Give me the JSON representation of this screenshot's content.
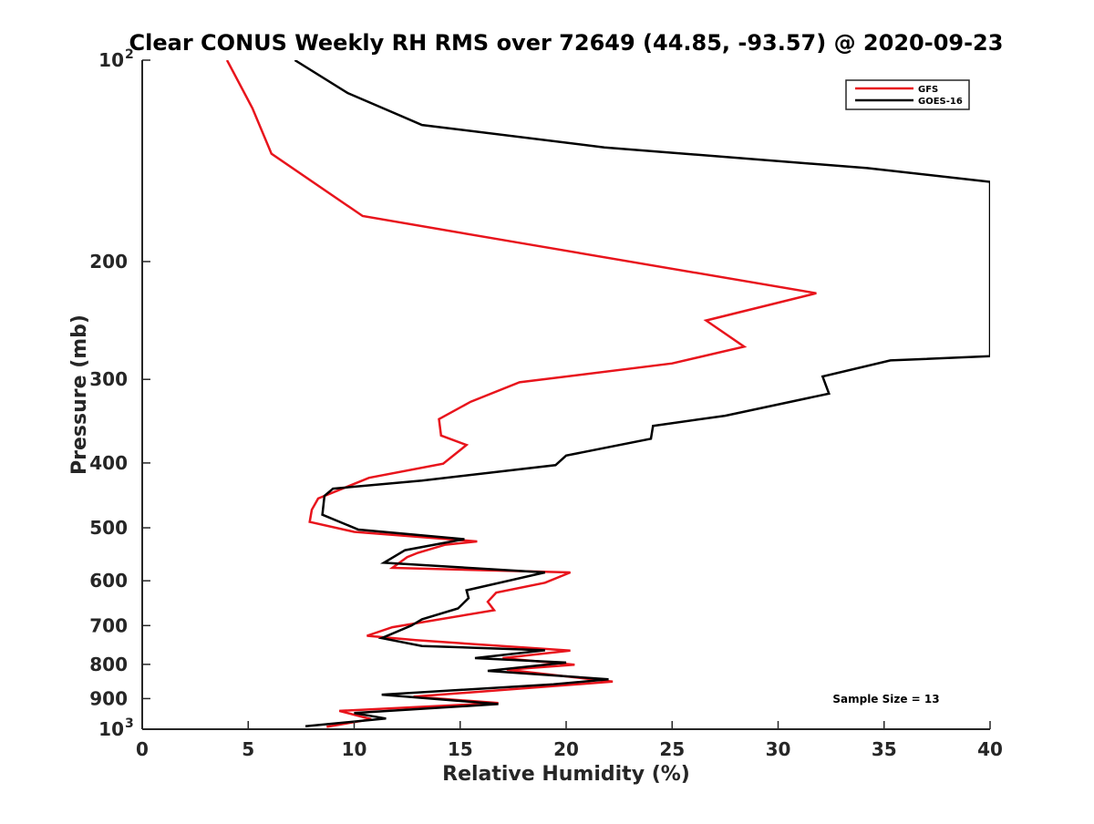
{
  "chart_data": {
    "type": "line",
    "title": "Clear CONUS Weekly RH RMS over 72649 (44.85, -93.57) @ 2020-09-23",
    "xlabel": "Relative Humidity (%)",
    "ylabel": "Pressure (mb)",
    "xlim": [
      0,
      40
    ],
    "ylim": [
      100,
      1000
    ],
    "y_scale": "log",
    "y_reversed": true,
    "grid": false,
    "legend_position": "top-right",
    "x_ticks": [
      {
        "value": 0,
        "label": "0"
      },
      {
        "value": 5,
        "label": "5"
      },
      {
        "value": 10,
        "label": "10"
      },
      {
        "value": 15,
        "label": "15"
      },
      {
        "value": 20,
        "label": "20"
      },
      {
        "value": 25,
        "label": "25"
      },
      {
        "value": 30,
        "label": "30"
      },
      {
        "value": 35,
        "label": "35"
      },
      {
        "value": 40,
        "label": "40"
      }
    ],
    "y_ticks": [
      {
        "value": 100,
        "base": "10",
        "exp": "2"
      },
      {
        "value": 200,
        "base": "200",
        "exp": ""
      },
      {
        "value": 300,
        "base": "300",
        "exp": ""
      },
      {
        "value": 400,
        "base": "400",
        "exp": ""
      },
      {
        "value": 500,
        "base": "500",
        "exp": ""
      },
      {
        "value": 600,
        "base": "600",
        "exp": ""
      },
      {
        "value": 700,
        "base": "700",
        "exp": ""
      },
      {
        "value": 800,
        "base": "800",
        "exp": ""
      },
      {
        "value": 900,
        "base": "900",
        "exp": ""
      },
      {
        "value": 1000,
        "base": "10",
        "exp": "3"
      }
    ],
    "series": [
      {
        "name": "GFS",
        "color": "#e8141c",
        "points": [
          [
            4.0,
            100
          ],
          [
            5.2,
            118
          ],
          [
            6.1,
            138
          ],
          [
            10.4,
            171
          ],
          [
            18.0,
            188
          ],
          [
            31.8,
            223
          ],
          [
            26.6,
            245
          ],
          [
            28.4,
            268
          ],
          [
            25.0,
            284
          ],
          [
            17.8,
            303
          ],
          [
            15.5,
            324
          ],
          [
            14.0,
            344
          ],
          [
            14.1,
            364
          ],
          [
            15.3,
            376
          ],
          [
            14.2,
            401
          ],
          [
            10.7,
            421
          ],
          [
            8.3,
            452
          ],
          [
            8.0,
            470
          ],
          [
            7.9,
            490
          ],
          [
            10.0,
            507
          ],
          [
            15.8,
            524
          ],
          [
            14.3,
            530
          ],
          [
            13.0,
            545
          ],
          [
            12.5,
            553
          ],
          [
            11.8,
            574
          ],
          [
            20.2,
            583
          ],
          [
            19.0,
            604
          ],
          [
            16.7,
            625
          ],
          [
            16.3,
            645
          ],
          [
            16.6,
            664
          ],
          [
            11.8,
            704
          ],
          [
            10.6,
            725
          ],
          [
            12.9,
            736
          ],
          [
            20.2,
            763
          ],
          [
            17.0,
            783
          ],
          [
            20.4,
            801
          ],
          [
            17.2,
            815
          ],
          [
            22.2,
            849
          ],
          [
            12.8,
            894
          ],
          [
            16.8,
            914
          ],
          [
            9.3,
            939
          ],
          [
            10.8,
            966
          ],
          [
            8.7,
            992
          ]
        ]
      },
      {
        "name": "GOES-16",
        "color": "#000000",
        "points": [
          [
            7.2,
            100
          ],
          [
            9.7,
            112
          ],
          [
            13.2,
            125
          ],
          [
            21.8,
            135
          ],
          [
            34.2,
            145
          ],
          [
            40.0,
            152
          ],
          [
            40.0,
            277
          ],
          [
            35.3,
            281
          ],
          [
            32.1,
            297
          ],
          [
            32.4,
            315
          ],
          [
            27.5,
            340
          ],
          [
            24.1,
            352
          ],
          [
            24.0,
            368
          ],
          [
            20.0,
            390
          ],
          [
            19.5,
            403
          ],
          [
            13.2,
            425
          ],
          [
            9.0,
            437
          ],
          [
            8.6,
            448
          ],
          [
            8.5,
            478
          ],
          [
            10.2,
            503
          ],
          [
            15.2,
            520
          ],
          [
            12.4,
            540
          ],
          [
            11.4,
            564
          ],
          [
            19.0,
            583
          ],
          [
            15.3,
            620
          ],
          [
            15.4,
            637
          ],
          [
            14.9,
            660
          ],
          [
            13.2,
            685
          ],
          [
            12.7,
            700
          ],
          [
            11.3,
            731
          ],
          [
            13.2,
            751
          ],
          [
            19.0,
            762
          ],
          [
            15.7,
            783
          ],
          [
            20.0,
            795
          ],
          [
            16.3,
            818
          ],
          [
            22.0,
            842
          ],
          [
            19.4,
            857
          ],
          [
            11.3,
            888
          ],
          [
            16.8,
            917
          ],
          [
            10.0,
            946
          ],
          [
            11.5,
            964
          ],
          [
            7.7,
            990
          ]
        ]
      }
    ],
    "annotation": "Sample Size = 13"
  }
}
